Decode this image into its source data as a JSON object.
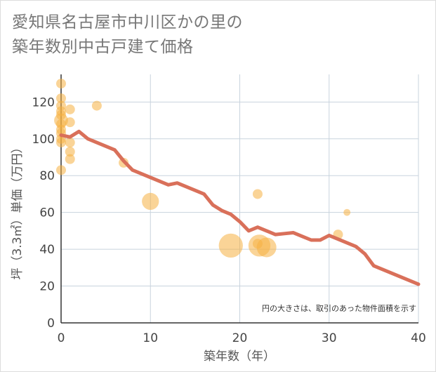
{
  "title": {
    "line1": "愛知県名古屋市中川区かの里の",
    "line2": "築年数別中古戸建て価格"
  },
  "note": "円の大きさは、取引のあった物件面積を示す",
  "chart_data": {
    "type": "scatter",
    "xlabel": "築年数（年）",
    "ylabel": "坪（3.3㎡）単価（万円）",
    "xlim": [
      0,
      40
    ],
    "ylim": [
      0,
      135
    ],
    "x_ticks": [
      0,
      10,
      20,
      30,
      40
    ],
    "y_ticks": [
      0,
      20,
      40,
      60,
      80,
      100,
      120
    ],
    "grid": true,
    "colors": {
      "bubble": "#f5b041",
      "line": "#d9705a",
      "grid": "#c8d3dd"
    },
    "scatter": [
      {
        "x": 0,
        "y": 130,
        "size": 1
      },
      {
        "x": 0,
        "y": 122,
        "size": 1
      },
      {
        "x": 0,
        "y": 118,
        "size": 1
      },
      {
        "x": 0,
        "y": 115,
        "size": 1
      },
      {
        "x": 0,
        "y": 113,
        "size": 1
      },
      {
        "x": 0,
        "y": 110,
        "size": 2
      },
      {
        "x": 0,
        "y": 108,
        "size": 1
      },
      {
        "x": 0,
        "y": 105,
        "size": 1
      },
      {
        "x": 0,
        "y": 103,
        "size": 1
      },
      {
        "x": 0,
        "y": 100,
        "size": 1
      },
      {
        "x": 0,
        "y": 98,
        "size": 1
      },
      {
        "x": 0,
        "y": 83,
        "size": 1
      },
      {
        "x": 1,
        "y": 116,
        "size": 1
      },
      {
        "x": 1,
        "y": 109,
        "size": 1
      },
      {
        "x": 1,
        "y": 98,
        "size": 1
      },
      {
        "x": 1,
        "y": 93,
        "size": 1
      },
      {
        "x": 1,
        "y": 89,
        "size": 1
      },
      {
        "x": 4,
        "y": 118,
        "size": 1
      },
      {
        "x": 7,
        "y": 87,
        "size": 1
      },
      {
        "x": 10,
        "y": 66,
        "size": 3
      },
      {
        "x": 19,
        "y": 42,
        "size": 6
      },
      {
        "x": 22,
        "y": 70,
        "size": 1
      },
      {
        "x": 22,
        "y": 43,
        "size": 1
      },
      {
        "x": 22.2,
        "y": 42,
        "size": 5
      },
      {
        "x": 23,
        "y": 41,
        "size": 4
      },
      {
        "x": 31,
        "y": 48,
        "size": 1
      },
      {
        "x": 32,
        "y": 60,
        "size": 0.5
      }
    ],
    "series": [
      {
        "x": [
          0,
          1,
          2,
          3,
          4,
          5,
          6,
          7,
          8,
          9,
          10,
          11,
          12,
          13,
          14,
          15,
          16,
          17,
          18,
          19,
          20,
          21,
          22,
          23,
          24,
          25,
          26,
          27,
          28,
          29,
          30,
          31,
          32,
          33,
          34,
          35,
          36,
          37,
          38,
          39,
          40
        ],
        "values": [
          102,
          101,
          104,
          100,
          98,
          96,
          94,
          88,
          83,
          81,
          79,
          77,
          75,
          76,
          74,
          72,
          70,
          64,
          61,
          59,
          55,
          50,
          52,
          50,
          48,
          48.5,
          49,
          47,
          45,
          45,
          47.5,
          45.5,
          43.5,
          41.5,
          37.5,
          31,
          29,
          27,
          25,
          23,
          21
        ]
      }
    ]
  }
}
